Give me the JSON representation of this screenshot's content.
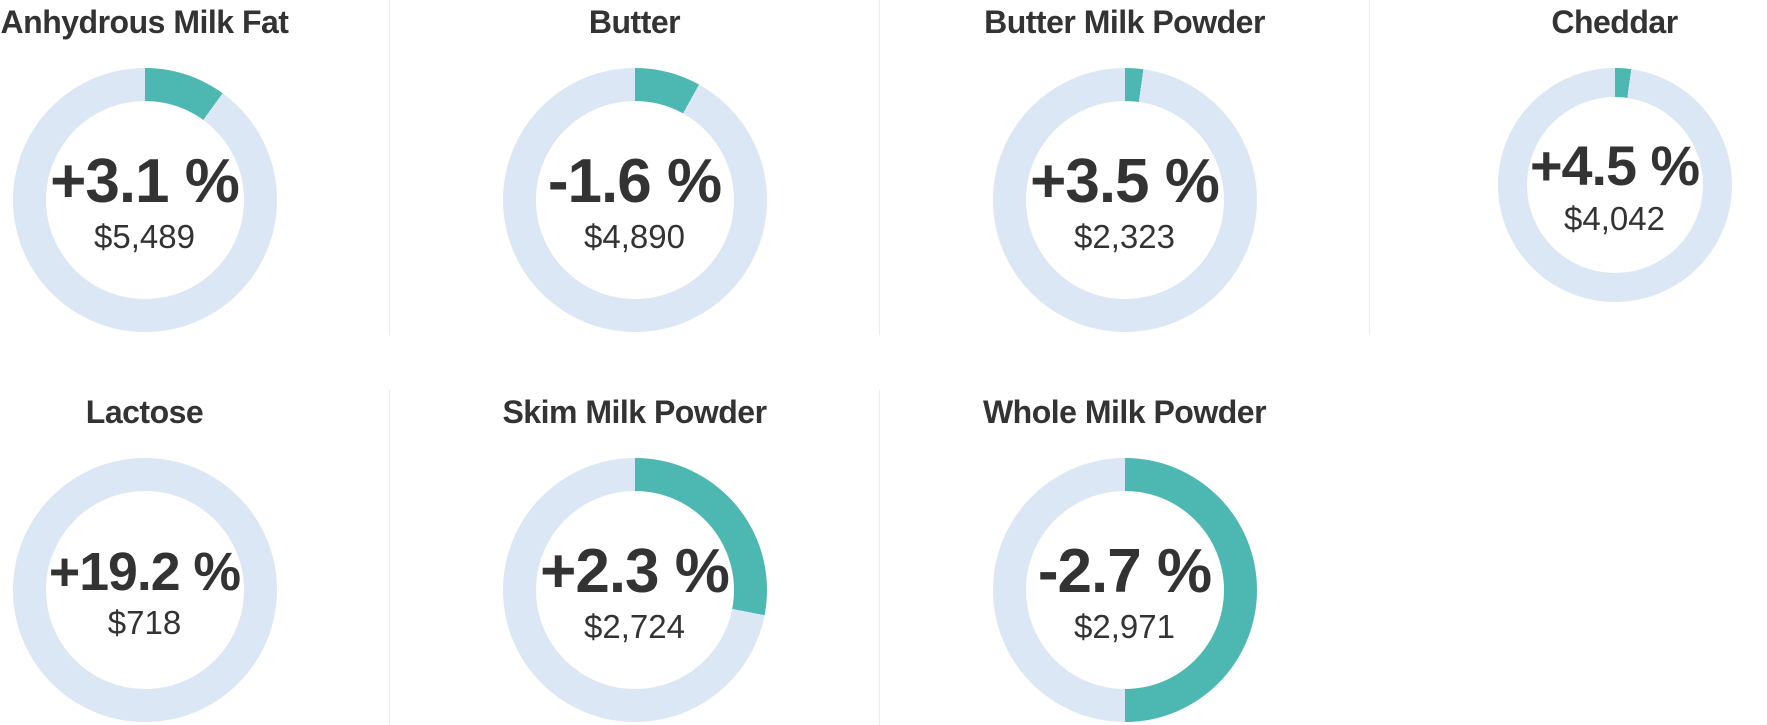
{
  "colors": {
    "accent_teal": "#4cb8b1",
    "ring_blue": "#dce7f5",
    "text": "#333333",
    "divider": "#ececec"
  },
  "chart_data": {
    "type": "donut",
    "layout": "2 rows: 4 charts on top, 3 on bottom; teal arc starts at 12 o'clock and sweeps clockwise over a pale blue ring",
    "charts": [
      {
        "title": "Anhydrous Milk Fat",
        "change": "+3.1 %",
        "price": "$5,489",
        "change_pct": 3.1,
        "price_usd": 5489,
        "arc_degrees": 36
      },
      {
        "title": "Butter",
        "change": "-1.6 %",
        "price": "$4,890",
        "change_pct": -1.6,
        "price_usd": 4890,
        "arc_degrees": 29
      },
      {
        "title": "Butter Milk Powder",
        "change": "+3.5 %",
        "price": "$2,323",
        "change_pct": 3.5,
        "price_usd": 2323,
        "arc_degrees": 8
      },
      {
        "title": "Cheddar",
        "change": "+4.5 %",
        "price": "$4,042",
        "change_pct": 4.5,
        "price_usd": 4042,
        "arc_degrees": 8
      },
      {
        "title": "Lactose",
        "change": "+19.2 %",
        "price": "$718",
        "change_pct": 19.2,
        "price_usd": 718,
        "arc_degrees": 0
      },
      {
        "title": "Skim Milk Powder",
        "change": "+2.3 %",
        "price": "$2,724",
        "change_pct": 2.3,
        "price_usd": 2724,
        "arc_degrees": 101
      },
      {
        "title": "Whole Milk Powder",
        "change": "-2.7 %",
        "price": "$2,971",
        "change_pct": -2.7,
        "price_usd": 2971,
        "arc_degrees": 180
      }
    ]
  }
}
